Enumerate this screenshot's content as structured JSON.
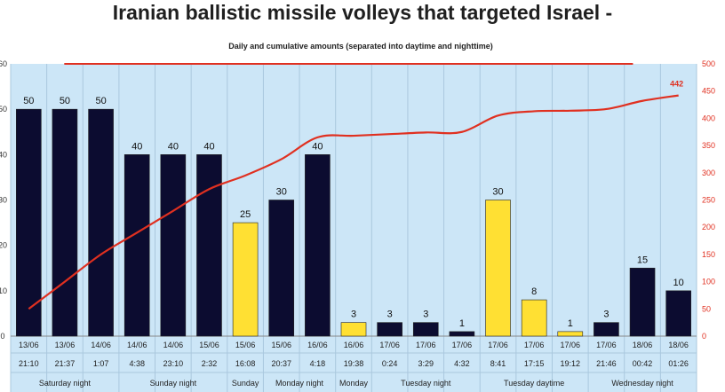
{
  "chart_data": {
    "type": "bar",
    "title": "Iranian ballistic missile volleys that targeted Israel -",
    "subtitle": "Daily and cumulative amounts (separated into daytime and nighttime)",
    "ylim": [
      0,
      60
    ],
    "y_ticks": [
      "0",
      "10",
      "20",
      "30",
      "40",
      "50",
      "60"
    ],
    "y2lim": [
      0,
      500
    ],
    "y2_ticks": [
      "0",
      "50",
      "100",
      "150",
      "200",
      "250",
      "300",
      "350",
      "400",
      "450",
      "500"
    ],
    "grid": "vertical separators",
    "colors": {
      "night": "#0c0c30",
      "day": "#ffe033",
      "cumulative": "#e03020",
      "plot_bg": "#cce6f7"
    },
    "categories": [
      {
        "date": "13/06",
        "time": "21:10"
      },
      {
        "date": "13/06",
        "time": "21:37"
      },
      {
        "date": "14/06",
        "time": "1:07"
      },
      {
        "date": "14/06",
        "time": "4:38"
      },
      {
        "date": "14/06",
        "time": "23:10"
      },
      {
        "date": "15/06",
        "time": "2:32"
      },
      {
        "date": "15/06",
        "time": "16:08"
      },
      {
        "date": "15/06",
        "time": "20:37"
      },
      {
        "date": "16/06",
        "time": "4:18"
      },
      {
        "date": "16/06",
        "time": "19:38"
      },
      {
        "date": "17/06",
        "time": "0:24"
      },
      {
        "date": "17/06",
        "time": "3:29"
      },
      {
        "date": "17/06",
        "time": "4:32"
      },
      {
        "date": "17/06",
        "time": "8:41"
      },
      {
        "date": "17/06",
        "time": "17:15"
      },
      {
        "date": "17/06",
        "time": "19:12"
      },
      {
        "date": "17/06",
        "time": "21:46"
      },
      {
        "date": "18/06",
        "time": "00:42"
      },
      {
        "date": "18/06",
        "time": "01:26"
      }
    ],
    "values": [
      50,
      50,
      50,
      40,
      40,
      40,
      25,
      30,
      40,
      3,
      3,
      3,
      1,
      30,
      8,
      1,
      3,
      15,
      10
    ],
    "period": [
      "night",
      "night",
      "night",
      "night",
      "night",
      "night",
      "day",
      "night",
      "night",
      "day",
      "night",
      "night",
      "night",
      "day",
      "day",
      "day",
      "night",
      "night",
      "night"
    ],
    "cumulative": [
      50,
      100,
      150,
      190,
      230,
      270,
      295,
      325,
      365,
      368,
      371,
      374,
      375,
      405,
      413,
      414,
      417,
      432,
      442
    ],
    "cumulative_label": "442",
    "reference_line": 500,
    "groups": [
      {
        "label": "Saturday night",
        "from": 0,
        "to": 2
      },
      {
        "label": "Sunday night",
        "from": 3,
        "to": 5
      },
      {
        "label": "Sunday",
        "from": 6,
        "to": 6
      },
      {
        "label": "Monday night",
        "from": 7,
        "to": 8
      },
      {
        "label": "Monday",
        "from": 9,
        "to": 9
      },
      {
        "label": "Tuesday night",
        "from": 10,
        "to": 12
      },
      {
        "label": "Tuesday daytime",
        "from": 13,
        "to": 15
      },
      {
        "label": "Wednesday night",
        "from": 16,
        "to": 18
      }
    ]
  }
}
